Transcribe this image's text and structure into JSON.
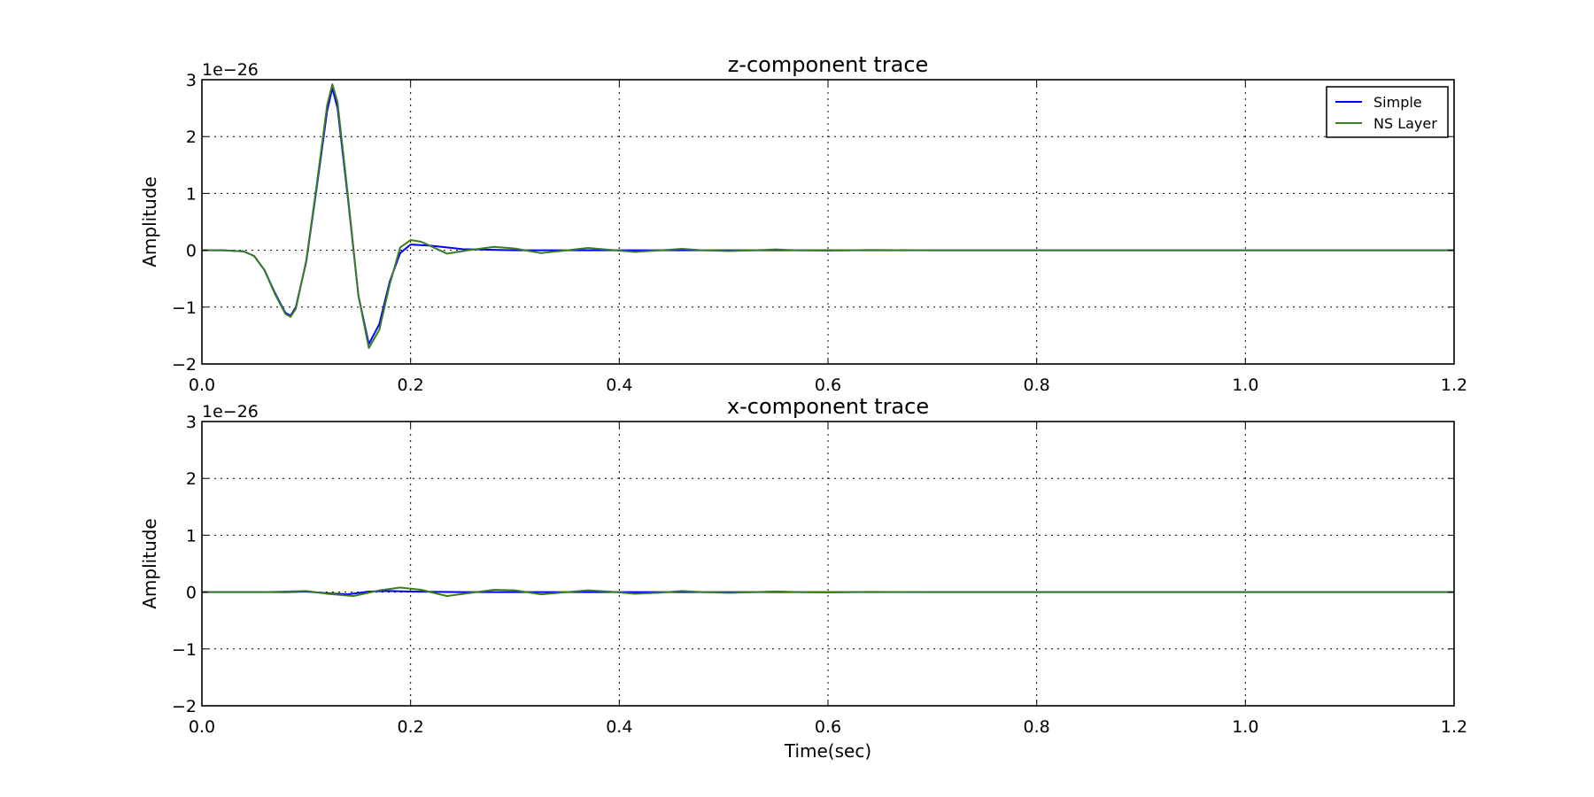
{
  "chart_data": [
    {
      "type": "line",
      "title": "z-component trace",
      "xlabel": "",
      "ylabel": "Amplitude",
      "offset_text": "1e−26",
      "xlim": [
        0.0,
        1.2
      ],
      "ylim": [
        -2,
        3
      ],
      "xticks": [
        0.0,
        0.2,
        0.4,
        0.6,
        0.8,
        1.0,
        1.2
      ],
      "xtick_labels": [
        "0.0",
        "0.2",
        "0.4",
        "0.6",
        "0.8",
        "1.0",
        "1.2"
      ],
      "yticks": [
        -2,
        -1,
        0,
        1,
        2,
        3
      ],
      "ytick_labels": [
        "−2",
        "−1",
        "0",
        "1",
        "2",
        "3"
      ],
      "grid": true,
      "legend": "top-right",
      "series": [
        {
          "name": "Simple",
          "color": "#0000ff",
          "x": [
            0.0,
            0.02,
            0.04,
            0.05,
            0.06,
            0.07,
            0.08,
            0.085,
            0.09,
            0.1,
            0.11,
            0.12,
            0.125,
            0.13,
            0.14,
            0.15,
            0.16,
            0.17,
            0.18,
            0.19,
            0.2,
            0.22,
            0.25,
            0.3,
            0.4,
            0.5,
            0.6,
            0.8,
            1.0,
            1.2
          ],
          "y": [
            0.0,
            0.0,
            -0.02,
            -0.1,
            -0.35,
            -0.75,
            -1.1,
            -1.15,
            -1.0,
            -0.2,
            1.1,
            2.45,
            2.85,
            2.5,
            0.9,
            -0.8,
            -1.65,
            -1.3,
            -0.55,
            -0.05,
            0.1,
            0.08,
            0.02,
            0.0,
            0.0,
            0.0,
            0.0,
            0.0,
            0.0,
            0.0
          ]
        },
        {
          "name": "NS Layer",
          "color": "#3a7d22",
          "x": [
            0.0,
            0.02,
            0.04,
            0.05,
            0.06,
            0.07,
            0.08,
            0.085,
            0.09,
            0.1,
            0.11,
            0.12,
            0.125,
            0.13,
            0.14,
            0.15,
            0.16,
            0.17,
            0.18,
            0.19,
            0.2,
            0.21,
            0.235,
            0.255,
            0.28,
            0.3,
            0.325,
            0.35,
            0.37,
            0.39,
            0.415,
            0.44,
            0.46,
            0.48,
            0.505,
            0.53,
            0.55,
            0.57,
            0.6,
            0.64,
            0.7,
            0.8,
            1.0,
            1.2
          ],
          "y": [
            0.0,
            0.0,
            -0.02,
            -0.1,
            -0.35,
            -0.77,
            -1.12,
            -1.17,
            -1.03,
            -0.18,
            1.15,
            2.55,
            2.92,
            2.6,
            0.95,
            -0.8,
            -1.72,
            -1.4,
            -0.6,
            0.05,
            0.18,
            0.15,
            -0.06,
            0.0,
            0.06,
            0.03,
            -0.05,
            0.0,
            0.04,
            0.01,
            -0.03,
            0.0,
            0.025,
            0.0,
            -0.015,
            0.0,
            0.015,
            0.0,
            -0.008,
            0.005,
            0.0,
            0.0,
            0.0,
            0.0
          ]
        }
      ]
    },
    {
      "type": "line",
      "title": "x-component trace",
      "xlabel": "Time(sec)",
      "ylabel": "Amplitude",
      "offset_text": "1e−26",
      "xlim": [
        0.0,
        1.2
      ],
      "ylim": [
        -2,
        3
      ],
      "xticks": [
        0.0,
        0.2,
        0.4,
        0.6,
        0.8,
        1.0,
        1.2
      ],
      "xtick_labels": [
        "0.0",
        "0.2",
        "0.4",
        "0.6",
        "0.8",
        "1.0",
        "1.2"
      ],
      "yticks": [
        -2,
        -1,
        0,
        1,
        2,
        3
      ],
      "ytick_labels": [
        "−2",
        "−1",
        "0",
        "1",
        "2",
        "3"
      ],
      "grid": true,
      "series": [
        {
          "name": "Simple",
          "color": "#0000ff",
          "x": [
            0.0,
            0.08,
            0.1,
            0.12,
            0.14,
            0.16,
            0.18,
            0.2,
            0.25,
            0.4,
            0.6,
            1.2
          ],
          "y": [
            0.0,
            0.0,
            0.01,
            -0.02,
            -0.04,
            0.01,
            0.02,
            0.01,
            0.0,
            0.0,
            0.0,
            0.0
          ]
        },
        {
          "name": "NS Layer",
          "color": "#3a7d22",
          "x": [
            0.0,
            0.06,
            0.08,
            0.1,
            0.12,
            0.145,
            0.17,
            0.19,
            0.21,
            0.235,
            0.255,
            0.28,
            0.3,
            0.325,
            0.35,
            0.37,
            0.39,
            0.415,
            0.44,
            0.46,
            0.48,
            0.505,
            0.53,
            0.55,
            0.57,
            0.6,
            0.64,
            0.7,
            0.8,
            1.0,
            1.2
          ],
          "y": [
            0.0,
            0.0,
            0.01,
            0.02,
            -0.03,
            -0.07,
            0.03,
            0.08,
            0.04,
            -0.07,
            -0.02,
            0.04,
            0.03,
            -0.04,
            0.0,
            0.03,
            0.01,
            -0.03,
            -0.01,
            0.02,
            0.0,
            -0.015,
            0.0,
            0.012,
            0.0,
            -0.006,
            0.004,
            0.0,
            0.0,
            0.0,
            0.0
          ]
        }
      ]
    }
  ]
}
